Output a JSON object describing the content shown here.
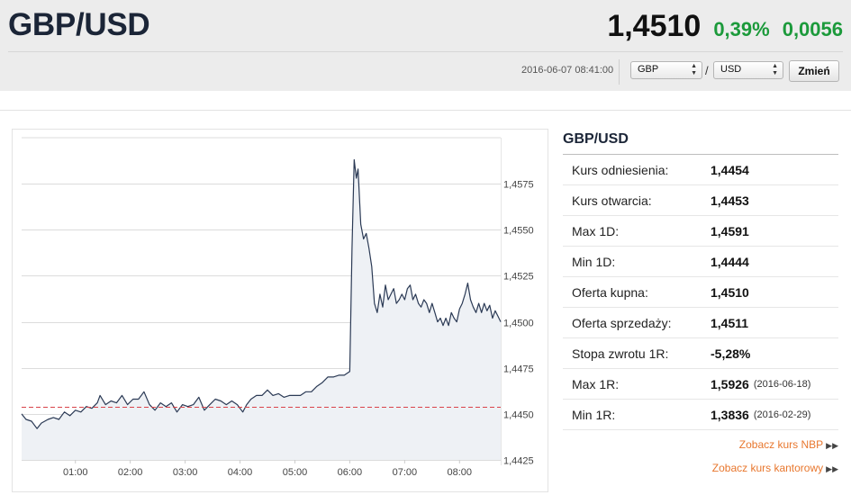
{
  "header": {
    "pair": "GBP/USD",
    "rate": "1,4510",
    "change_pct": "0,39%",
    "change_abs": "0,0056",
    "timestamp": "2016-06-07 08:41:00",
    "from_currency": "GBP",
    "to_currency": "USD",
    "separator": "/",
    "change_button": "Zmień"
  },
  "colors": {
    "positive": "#1c9a3b",
    "line": "#2b3a55",
    "reference": "#d9434a",
    "link": "#e8772e"
  },
  "sidebar": {
    "title": "GBP/USD",
    "rows": [
      {
        "label": "Kurs odniesienia:",
        "value": "1,4454",
        "date": ""
      },
      {
        "label": "Kurs otwarcia:",
        "value": "1,4453",
        "date": ""
      },
      {
        "label": "Max 1D:",
        "value": "1,4591",
        "date": ""
      },
      {
        "label": "Min 1D:",
        "value": "1,4444",
        "date": ""
      },
      {
        "label": "Oferta kupna:",
        "value": "1,4510",
        "date": ""
      },
      {
        "label": "Oferta sprzedaży:",
        "value": "1,4511",
        "date": ""
      },
      {
        "label": "Stopa zwrotu 1R:",
        "value": "-5,28%",
        "date": ""
      },
      {
        "label": "Max 1R:",
        "value": "1,5926",
        "date": "(2016-06-18)"
      },
      {
        "label": "Min 1R:",
        "value": "1,3836",
        "date": "(2016-02-29)"
      }
    ],
    "links": [
      "Zobacz kurs NBP",
      "Zobacz kurs kantorowy"
    ]
  },
  "chart_data": {
    "type": "line",
    "title": "",
    "xlabel": "",
    "ylabel": "",
    "x_ticks": [
      "01:00",
      "02:00",
      "03:00",
      "04:00",
      "05:00",
      "06:00",
      "07:00",
      "08:00"
    ],
    "y_ticks": [
      "1,4425",
      "1,4450",
      "1,4475",
      "1,4500",
      "1,4525",
      "1,4550",
      "1,4575"
    ],
    "y_tick_values": [
      1.4425,
      1.445,
      1.4475,
      1.45,
      1.4525,
      1.455,
      1.4575
    ],
    "ylim": [
      1.4425,
      1.46
    ],
    "xlim_hours": [
      0.02,
      8.75
    ],
    "reference_line": 1.4454,
    "grid": true,
    "area_fill": true,
    "series": [
      {
        "name": "",
        "points": [
          [
            0.02,
            1.445
          ],
          [
            0.1,
            1.4447
          ],
          [
            0.2,
            1.4446
          ],
          [
            0.3,
            1.4442
          ],
          [
            0.38,
            1.4445
          ],
          [
            0.5,
            1.4447
          ],
          [
            0.6,
            1.4448
          ],
          [
            0.7,
            1.4447
          ],
          [
            0.8,
            1.4451
          ],
          [
            0.9,
            1.4449
          ],
          [
            1.0,
            1.4452
          ],
          [
            1.1,
            1.4451
          ],
          [
            1.2,
            1.4454
          ],
          [
            1.3,
            1.4453
          ],
          [
            1.4,
            1.4456
          ],
          [
            1.45,
            1.446
          ],
          [
            1.55,
            1.4455
          ],
          [
            1.65,
            1.4457
          ],
          [
            1.75,
            1.4456
          ],
          [
            1.85,
            1.446
          ],
          [
            1.95,
            1.4455
          ],
          [
            2.05,
            1.4458
          ],
          [
            2.15,
            1.4458
          ],
          [
            2.25,
            1.4462
          ],
          [
            2.35,
            1.4455
          ],
          [
            2.45,
            1.4452
          ],
          [
            2.55,
            1.4456
          ],
          [
            2.65,
            1.4454
          ],
          [
            2.75,
            1.4456
          ],
          [
            2.85,
            1.4451
          ],
          [
            2.95,
            1.4455
          ],
          [
            3.05,
            1.4454
          ],
          [
            3.15,
            1.4455
          ],
          [
            3.25,
            1.4459
          ],
          [
            3.35,
            1.4452
          ],
          [
            3.45,
            1.4455
          ],
          [
            3.55,
            1.4458
          ],
          [
            3.65,
            1.4457
          ],
          [
            3.75,
            1.4455
          ],
          [
            3.85,
            1.4457
          ],
          [
            3.95,
            1.4455
          ],
          [
            4.05,
            1.4451
          ],
          [
            4.12,
            1.4455
          ],
          [
            4.2,
            1.4458
          ],
          [
            4.3,
            1.446
          ],
          [
            4.4,
            1.446
          ],
          [
            4.5,
            1.4463
          ],
          [
            4.6,
            1.446
          ],
          [
            4.7,
            1.4461
          ],
          [
            4.8,
            1.4459
          ],
          [
            4.9,
            1.446
          ],
          [
            5.0,
            1.446
          ],
          [
            5.1,
            1.446
          ],
          [
            5.2,
            1.4462
          ],
          [
            5.3,
            1.4462
          ],
          [
            5.4,
            1.4465
          ],
          [
            5.5,
            1.4467
          ],
          [
            5.6,
            1.447
          ],
          [
            5.7,
            1.447
          ],
          [
            5.8,
            1.4471
          ],
          [
            5.9,
            1.4471
          ],
          [
            6.0,
            1.4473
          ],
          [
            6.04,
            1.454
          ],
          [
            6.08,
            1.4588
          ],
          [
            6.12,
            1.4578
          ],
          [
            6.15,
            1.4583
          ],
          [
            6.2,
            1.4553
          ],
          [
            6.25,
            1.4545
          ],
          [
            6.3,
            1.4548
          ],
          [
            6.35,
            1.454
          ],
          [
            6.4,
            1.453
          ],
          [
            6.45,
            1.451
          ],
          [
            6.5,
            1.4505
          ],
          [
            6.55,
            1.4515
          ],
          [
            6.6,
            1.4508
          ],
          [
            6.65,
            1.452
          ],
          [
            6.7,
            1.4512
          ],
          [
            6.75,
            1.4515
          ],
          [
            6.8,
            1.4518
          ],
          [
            6.85,
            1.451
          ],
          [
            6.9,
            1.4512
          ],
          [
            6.95,
            1.4515
          ],
          [
            7.0,
            1.4512
          ],
          [
            7.05,
            1.4518
          ],
          [
            7.1,
            1.452
          ],
          [
            7.15,
            1.4512
          ],
          [
            7.2,
            1.4515
          ],
          [
            7.25,
            1.451
          ],
          [
            7.3,
            1.4508
          ],
          [
            7.35,
            1.4512
          ],
          [
            7.4,
            1.451
          ],
          [
            7.45,
            1.4505
          ],
          [
            7.5,
            1.451
          ],
          [
            7.55,
            1.4505
          ],
          [
            7.6,
            1.45
          ],
          [
            7.65,
            1.4502
          ],
          [
            7.7,
            1.4498
          ],
          [
            7.75,
            1.4502
          ],
          [
            7.8,
            1.4498
          ],
          [
            7.85,
            1.4505
          ],
          [
            7.9,
            1.4502
          ],
          [
            7.95,
            1.45
          ],
          [
            8.0,
            1.4507
          ],
          [
            8.05,
            1.451
          ],
          [
            8.1,
            1.4515
          ],
          [
            8.15,
            1.4521
          ],
          [
            8.2,
            1.4512
          ],
          [
            8.25,
            1.4508
          ],
          [
            8.3,
            1.4505
          ],
          [
            8.35,
            1.451
          ],
          [
            8.4,
            1.4505
          ],
          [
            8.45,
            1.451
          ],
          [
            8.5,
            1.4506
          ],
          [
            8.55,
            1.4509
          ],
          [
            8.6,
            1.4502
          ],
          [
            8.65,
            1.4506
          ],
          [
            8.7,
            1.4503
          ],
          [
            8.75,
            1.45
          ]
        ]
      }
    ]
  }
}
